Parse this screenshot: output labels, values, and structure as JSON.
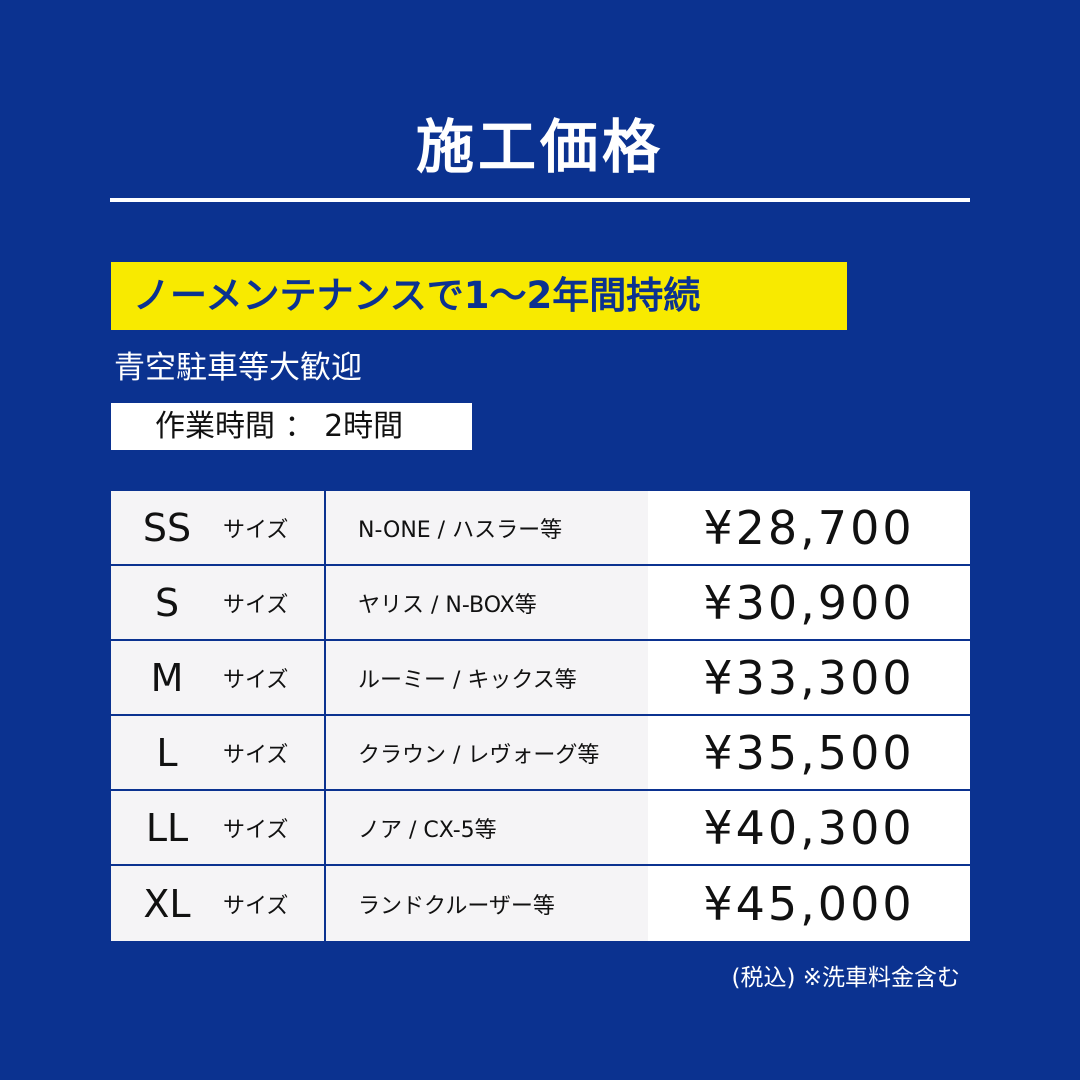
{
  "title": "施工価格",
  "banner": "ノーメンテナンスで1～2年間持続",
  "subtitle": "青空駐車等大歓迎",
  "work_time": "作業時間 ： 2時間",
  "size_suffix": "サイズ",
  "rows": [
    {
      "size": "SS",
      "cars": "N-ONE / ハスラー等",
      "price": "¥28,700"
    },
    {
      "size": "S",
      "cars": "ヤリス / N-BOX等",
      "price": "¥30,900"
    },
    {
      "size": "M",
      "cars": "ルーミー / キックス等",
      "price": "¥33,300"
    },
    {
      "size": "L",
      "cars": "クラウン / レヴォーグ等",
      "price": "¥35,500"
    },
    {
      "size": "LL",
      "cars": "ノア / CX-5等",
      "price": "¥40,300"
    },
    {
      "size": "XL",
      "cars": "ランドクルーザー等",
      "price": "¥45,000"
    }
  ],
  "note": "(税込) ※洗車料金含む",
  "colors": {
    "background": "#0b3290",
    "banner": "#f8ea00"
  }
}
